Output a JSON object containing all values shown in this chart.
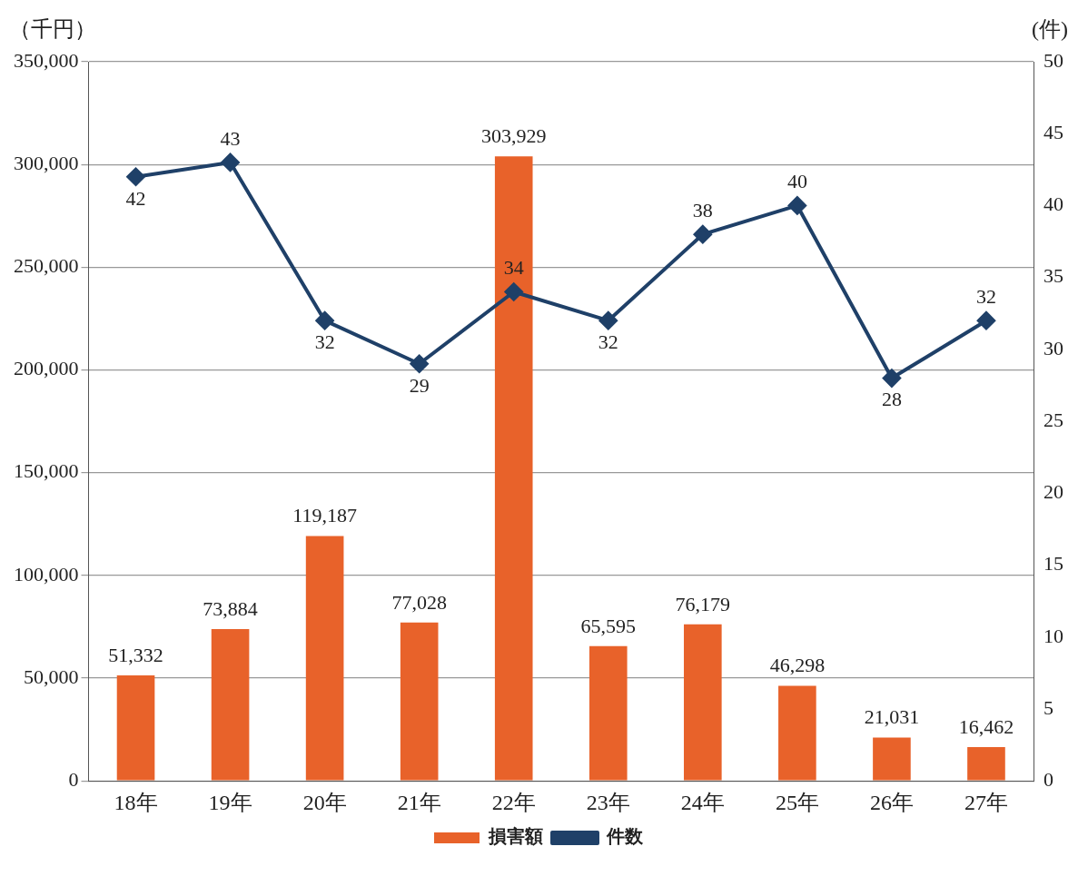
{
  "chart_data": {
    "type": "bar",
    "ylabel": "（千円）",
    "y2label": "(件)",
    "categories": [
      "18年",
      "19年",
      "20年",
      "21年",
      "22年",
      "23年",
      "24年",
      "25年",
      "26年",
      "27年"
    ],
    "series": [
      {
        "name": "損害額",
        "color": "#e8622a",
        "values": [
          51332,
          73884,
          119187,
          77028,
          303929,
          65595,
          76179,
          46298,
          21031,
          16462
        ],
        "value_labels": [
          "51,332",
          "73,884",
          "119,187",
          "77,028",
          "303,929",
          "65,595",
          "76,179",
          "46,298",
          "21,031",
          "16,462"
        ]
      },
      {
        "name": "件数",
        "type": "line",
        "axis": "y2",
        "color": "#1f4068",
        "marker": "diamond",
        "values": [
          42,
          43,
          32,
          29,
          34,
          32,
          38,
          40,
          28,
          32
        ],
        "value_labels": [
          "42",
          "43",
          "32",
          "29",
          "34",
          "32",
          "38",
          "40",
          "28",
          "32"
        ]
      }
    ],
    "ylim": [
      0,
      350000
    ],
    "yticks": [
      0,
      {
        "value": 50000,
        "label": "50,000"
      },
      {
        "value": 100000,
        "label": "100,000"
      },
      {
        "value": 150000,
        "label": "150,000"
      },
      {
        "value": 200000,
        "label": "200,000"
      },
      {
        "value": 250000,
        "label": "250,000"
      },
      {
        "value": 300000,
        "label": "300,000"
      },
      {
        "value": 350000,
        "label": "350,000"
      }
    ],
    "y2lim": [
      0,
      50
    ],
    "y2ticks": [
      0,
      5,
      10,
      15,
      20,
      25,
      30,
      35,
      40,
      45,
      50
    ],
    "grid": "y",
    "legend": "bottom"
  }
}
